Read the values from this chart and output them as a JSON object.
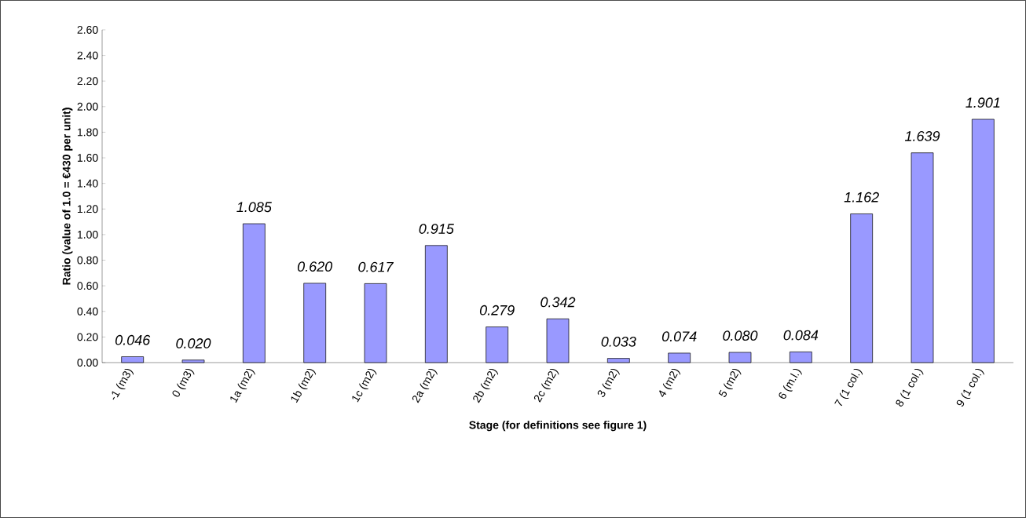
{
  "chart_data": {
    "type": "bar",
    "xlabel": "Stage (for definitions see figure 1)",
    "ylabel": "Ratio (value of 1.0 = €430 per unit)",
    "categories": [
      "-1 (m3)",
      "0 (m3)",
      "1a (m2)",
      "1b (m2)",
      "1c (m2)",
      "2a (m2)",
      "2b (m2)",
      "2c (m2)",
      "3 (m2)",
      "4 (m2)",
      "5 (m2)",
      "6 (m.l.)",
      "7 (1 col.)",
      "8 (1 col.)",
      "9 (1 col.)"
    ],
    "values": [
      0.046,
      0.02,
      1.085,
      0.62,
      0.617,
      0.915,
      0.279,
      0.342,
      0.033,
      0.074,
      0.08,
      0.084,
      1.162,
      1.639,
      1.901
    ],
    "value_labels": [
      "0.046",
      "0.020",
      "1.085",
      "0.620",
      "0.617",
      "0.915",
      "0.279",
      "0.342",
      "0.033",
      "0.074",
      "0.080",
      "0.084",
      "1.162",
      "1.639",
      "1.901"
    ],
    "color": "#9999ff",
    "ylim": [
      0,
      2.6
    ],
    "yticks": [
      {
        "value": 0,
        "label": "0.00"
      },
      {
        "value": 0.2,
        "label": "0.20"
      },
      {
        "value": 0.4,
        "label": "0.40"
      },
      {
        "value": 0.6,
        "label": "0.60"
      },
      {
        "value": 0.8,
        "label": "0.80"
      },
      {
        "value": 1.0,
        "label": "1.00"
      },
      {
        "value": 1.2,
        "label": "1.20"
      },
      {
        "value": 1.4,
        "label": "1.40"
      },
      {
        "value": 1.6,
        "label": "1.60"
      },
      {
        "value": 1.8,
        "label": "1.80"
      },
      {
        "value": 2.0,
        "label": "2.00"
      },
      {
        "value": 2.2,
        "label": "2.20"
      },
      {
        "value": 2.4,
        "label": "2.40"
      },
      {
        "value": 2.6,
        "label": "2.60"
      }
    ],
    "grid": false
  }
}
